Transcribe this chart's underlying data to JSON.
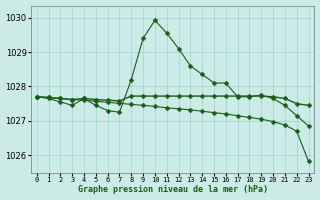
{
  "title": "Graphe pression niveau de la mer (hPa)",
  "background_color": "#cceae6",
  "grid_color": "#99d5cc",
  "line_color": "#1a5c1a",
  "xlim": [
    -0.5,
    23.5
  ],
  "ylim": [
    1025.5,
    1030.35
  ],
  "yticks": [
    1026,
    1027,
    1028,
    1029,
    1030
  ],
  "xticks": [
    0,
    1,
    2,
    3,
    4,
    5,
    6,
    7,
    8,
    9,
    10,
    11,
    12,
    13,
    14,
    15,
    16,
    17,
    18,
    19,
    20,
    21,
    22,
    23
  ],
  "series1_x": [
    0,
    1,
    2,
    3,
    4,
    5,
    6,
    7,
    8,
    9,
    10,
    11,
    12,
    13,
    14,
    15,
    16,
    17,
    18,
    19,
    20,
    21,
    22,
    23
  ],
  "series1_y": [
    1027.7,
    1027.65,
    1027.55,
    1027.45,
    1027.65,
    1027.45,
    1027.3,
    1027.25,
    1028.2,
    1029.4,
    1029.92,
    1029.55,
    1029.1,
    1028.6,
    1028.35,
    1028.1,
    1028.1,
    1027.7,
    1027.7,
    1027.75,
    1027.65,
    1027.45,
    1027.15,
    1026.85
  ],
  "series2_x": [
    0,
    1,
    2,
    3,
    4,
    5,
    6,
    7,
    8,
    9,
    10,
    11,
    12,
    13,
    14,
    15,
    16,
    17,
    18,
    19,
    20,
    21,
    22,
    23
  ],
  "series2_y": [
    1027.7,
    1027.68,
    1027.65,
    1027.62,
    1027.6,
    1027.57,
    1027.54,
    1027.51,
    1027.48,
    1027.45,
    1027.42,
    1027.38,
    1027.35,
    1027.32,
    1027.28,
    1027.24,
    1027.2,
    1027.15,
    1027.1,
    1027.05,
    1026.98,
    1026.88,
    1026.7,
    1025.82
  ],
  "series3_x": [
    0,
    1,
    2,
    3,
    4,
    5,
    6,
    7,
    8,
    9,
    10,
    11,
    12,
    13,
    14,
    15,
    16,
    17,
    18,
    19,
    20,
    21,
    22,
    23
  ],
  "series3_y": [
    1027.7,
    1027.68,
    1027.65,
    1027.62,
    1027.65,
    1027.62,
    1027.6,
    1027.58,
    1027.72,
    1027.72,
    1027.72,
    1027.72,
    1027.72,
    1027.72,
    1027.72,
    1027.72,
    1027.72,
    1027.72,
    1027.72,
    1027.72,
    1027.7,
    1027.65,
    1027.5,
    1027.45
  ]
}
